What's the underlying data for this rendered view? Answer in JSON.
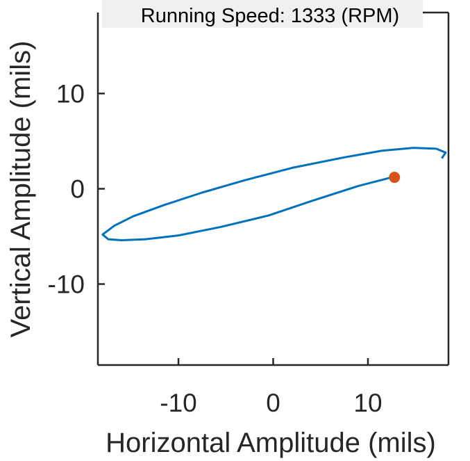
{
  "chart_data": {
    "type": "line",
    "title": "",
    "xlabel": "Horizontal Amplitude (mils)",
    "ylabel": "Vertical Amplitude (mils)",
    "annotation": "Running Speed: 1333 (RPM)",
    "xlim": [
      -18.5,
      18.5
    ],
    "ylim": [
      -18.5,
      18.5
    ],
    "xticks": [
      -10,
      0,
      10
    ],
    "yticks": [
      -10,
      0,
      10
    ],
    "xtick_labels": [
      "-10",
      "0",
      "10"
    ],
    "ytick_labels": [
      "-10",
      "0",
      "10"
    ],
    "grid": false,
    "box": "open-top",
    "series": [
      {
        "type": "line",
        "color": "#0072BD",
        "x": [
          17.8,
          18.2,
          17.2,
          14.8,
          11.5,
          7.5,
          2.0,
          -3.0,
          -7.5,
          -11.5,
          -14.8,
          -16.8,
          -18.0,
          -17.4,
          -16.0,
          -13.5,
          -10.0,
          -5.5,
          -0.5,
          4.0,
          9.0,
          12.5
        ],
        "y": [
          3.2,
          3.8,
          4.2,
          4.3,
          4.0,
          3.3,
          2.2,
          0.9,
          -0.4,
          -1.7,
          -2.9,
          -3.9,
          -4.8,
          -5.3,
          -5.4,
          -5.3,
          -4.9,
          -4.0,
          -2.8,
          -1.3,
          0.3,
          1.2
        ]
      },
      {
        "type": "scatter",
        "color": "#D95319",
        "x": [
          12.8
        ],
        "y": [
          1.2
        ]
      }
    ]
  }
}
